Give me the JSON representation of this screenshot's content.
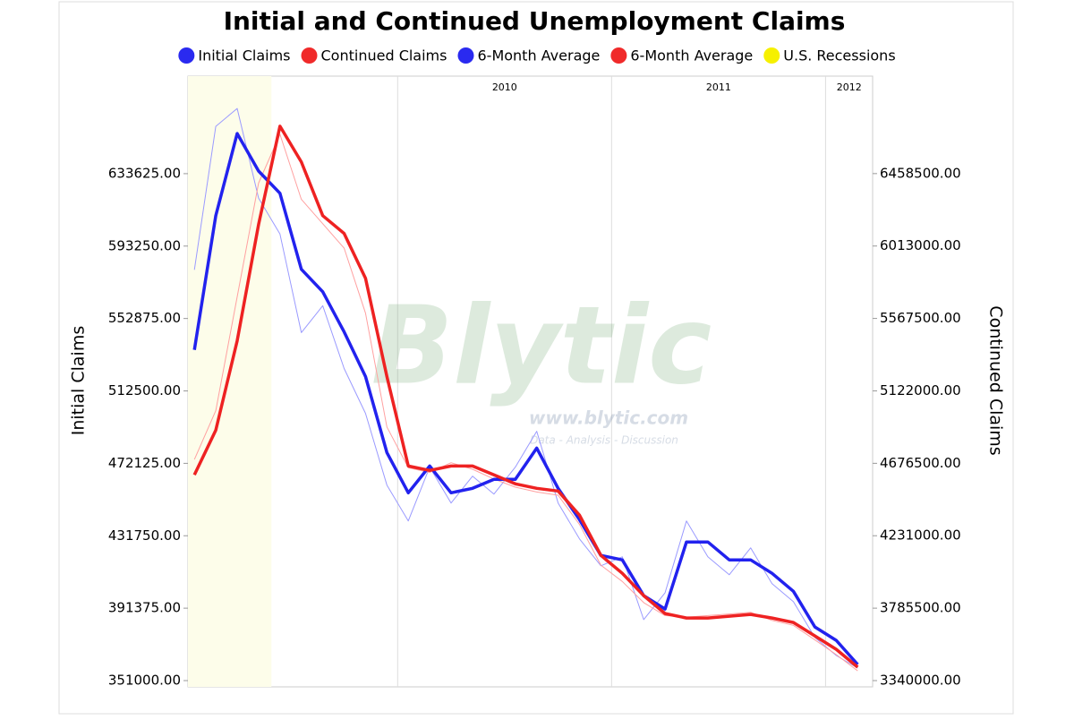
{
  "chart_data": {
    "type": "line",
    "title": "Initial and Continued Unemployment Claims",
    "ylabel": "Initial Claims",
    "y2label": "Continued Claims",
    "watermark": [
      "Blytic",
      "www.blytic.com",
      "Data - Analysis - Discussion"
    ],
    "x": [
      2009.05,
      2009.15,
      2009.25,
      2009.35,
      2009.45,
      2009.55,
      2009.65,
      2009.75,
      2009.85,
      2009.95,
      2010.05,
      2010.15,
      2010.25,
      2010.35,
      2010.45,
      2010.55,
      2010.65,
      2010.75,
      2010.85,
      2010.95,
      2011.05,
      2011.15,
      2011.25,
      2011.35,
      2011.45,
      2011.55,
      2011.65,
      2011.75,
      2011.85,
      2011.95,
      2012.05,
      2012.15
    ],
    "xlim": [
      2009.02,
      2012.22
    ],
    "xticks": [
      2010,
      2011,
      2012
    ],
    "ylim": [
      351000,
      688000
    ],
    "yticks": [
      {
        "value": 351000,
        "label": "351000.00"
      },
      {
        "value": 391375,
        "label": "391375.00"
      },
      {
        "value": 431750,
        "label": "431750.00"
      },
      {
        "value": 472125,
        "label": "472125.00"
      },
      {
        "value": 512500,
        "label": "512500.00"
      },
      {
        "value": 552875,
        "label": "552875.00"
      },
      {
        "value": 593250,
        "label": "593250.00"
      },
      {
        "value": 633625,
        "label": "633625.00"
      }
    ],
    "y2lim": [
      3340000,
      7058000
    ],
    "y2ticks": [
      {
        "value": 3340000,
        "label": "3340000.00"
      },
      {
        "value": 3785500,
        "label": "3785500.00"
      },
      {
        "value": 4231000,
        "label": "4231000.00"
      },
      {
        "value": 4676500,
        "label": "4676500.00"
      },
      {
        "value": 5122000,
        "label": "5122000.00"
      },
      {
        "value": 5567500,
        "label": "5567500.00"
      },
      {
        "value": 6013000,
        "label": "6013000.00"
      },
      {
        "value": 6458500,
        "label": "6458500.00"
      }
    ],
    "grid": true,
    "series": [
      {
        "name": "Initial Claims",
        "color": "#2a2af0",
        "line_color": "#9a9aff",
        "width": 1,
        "axis": "y",
        "values": [
          580000,
          660000,
          670000,
          620000,
          600000,
          545000,
          560000,
          525000,
          500000,
          460000,
          440000,
          470000,
          450000,
          465000,
          455000,
          470000,
          490000,
          450000,
          430000,
          415000,
          420000,
          385000,
          400000,
          440000,
          420000,
          410000,
          425000,
          405000,
          395000,
          375000,
          365000,
          358000
        ]
      },
      {
        "name": "Continued Claims",
        "color": "#f02a2a",
        "line_color": "#ffa0a0",
        "width": 1,
        "axis": "y2",
        "values": [
          4700000,
          5000000,
          5700000,
          6400000,
          6700000,
          6300000,
          6150000,
          6000000,
          5600000,
          4900000,
          4650000,
          4620000,
          4680000,
          4640000,
          4580000,
          4530000,
          4500000,
          4480000,
          4300000,
          4050000,
          3950000,
          3820000,
          3740000,
          3730000,
          3740000,
          3750000,
          3760000,
          3710000,
          3680000,
          3590000,
          3500000,
          3400000
        ]
      },
      {
        "name": "6-Month Average",
        "color": "#2a2af0",
        "line_color": "#2222ee",
        "width": 3.5,
        "axis": "y",
        "values": [
          535400,
          610200,
          656000,
          635100,
          622700,
          580300,
          567800,
          545400,
          520500,
          478100,
          455700,
          470600,
          455700,
          458200,
          463200,
          463200,
          480600,
          458200,
          440700,
          420800,
          418300,
          398400,
          390900,
          428300,
          428300,
          418300,
          418300,
          410800,
          400800,
          380900,
          373400,
          360000
        ]
      },
      {
        "name": "6-Month Average",
        "color": "#f02a2a",
        "line_color": "#ee2222",
        "width": 3.5,
        "axis": "y2",
        "values": [
          4605000,
          4880000,
          5430000,
          6145000,
          6750000,
          6530000,
          6200000,
          6090000,
          5815000,
          5210000,
          4660000,
          4632500,
          4660000,
          4660000,
          4605000,
          4550000,
          4522500,
          4506000,
          4357500,
          4110000,
          4000000,
          3862500,
          3752500,
          3725000,
          3725000,
          3736000,
          3747000,
          3725000,
          3697500,
          3615000,
          3532500,
          3422500
        ]
      }
    ],
    "bands": [
      {
        "name": "U.S. Recessions",
        "color": "#f6f000",
        "fill": "#fdfdea",
        "x": [
          2009.02,
          2009.41
        ]
      }
    ]
  }
}
